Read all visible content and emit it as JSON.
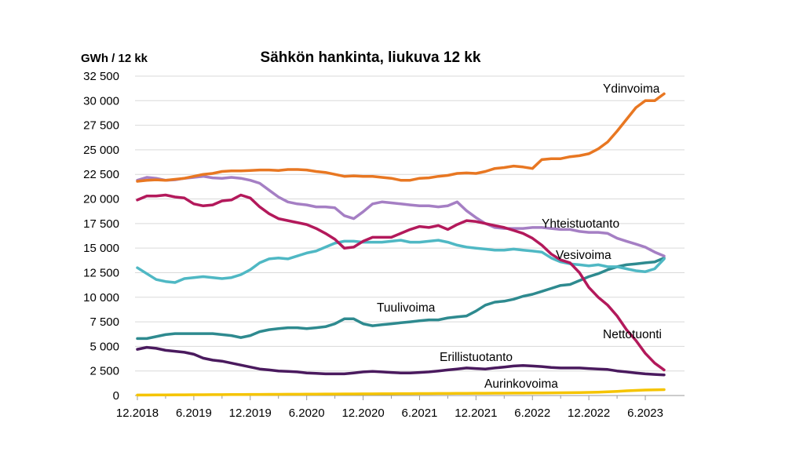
{
  "chart_data": {
    "type": "line",
    "title": "Sähkön hankinta, liukuva 12 kk",
    "ylabel": "GWh / 12 kk",
    "xlabel": "",
    "ylim": [
      0,
      32500
    ],
    "yticks": [
      0,
      2500,
      5000,
      7500,
      10000,
      12500,
      15000,
      17500,
      20000,
      22500,
      25000,
      27500,
      30000,
      32500
    ],
    "ytick_labels": [
      "0",
      "2 500",
      "5 000",
      "7 500",
      "10 000",
      "12 500",
      "15 000",
      "17 500",
      "20 000",
      "22 500",
      "25 000",
      "27 500",
      "30 000",
      "32 500"
    ],
    "xtick_labels": [
      "12.2018",
      "6.2019",
      "12.2019",
      "6.2020",
      "12.2020",
      "6.2021",
      "12.2021",
      "6.2022",
      "12.2022",
      "6.2023"
    ],
    "grid": true,
    "legend": "inline labels",
    "series": [
      {
        "name": "Ydinvoima",
        "color": "#e87722",
        "values": [
          21800,
          21900,
          21950,
          21900,
          22000,
          22100,
          22300,
          22500,
          22600,
          22800,
          22850,
          22850,
          22900,
          22950,
          22950,
          22900,
          23000,
          23000,
          22950,
          22800,
          22700,
          22500,
          22300,
          22350,
          22300,
          22300,
          22200,
          22100,
          21900,
          21900,
          22100,
          22150,
          22300,
          22400,
          22600,
          22650,
          22600,
          22800,
          23100,
          23200,
          23350,
          23250,
          23100,
          24000,
          24100,
          24100,
          24300,
          24400,
          24600,
          25100,
          25800,
          26900,
          28100,
          29300,
          30000,
          30000,
          30700
        ]
      },
      {
        "name": "Yhteistuotanto",
        "color": "#a57fc4",
        "values": [
          21900,
          22200,
          22100,
          21900,
          21950,
          22100,
          22200,
          22300,
          22150,
          22100,
          22200,
          22100,
          21900,
          21600,
          20900,
          20200,
          19700,
          19500,
          19400,
          19200,
          19200,
          19100,
          18300,
          18000,
          18700,
          19500,
          19700,
          19600,
          19500,
          19400,
          19300,
          19300,
          19200,
          19300,
          19700,
          18800,
          18100,
          17500,
          17100,
          17000,
          17000,
          17000,
          17100,
          17100,
          17000,
          16900,
          16900,
          16700,
          16600,
          16600,
          16500,
          16000,
          15700,
          15400,
          15100,
          14600,
          14200
        ]
      },
      {
        "name": "Nettotuonti",
        "color": "#b3195b",
        "values": [
          19900,
          20300,
          20300,
          20400,
          20200,
          20100,
          19500,
          19300,
          19400,
          19800,
          19900,
          20400,
          20100,
          19200,
          18500,
          18000,
          17800,
          17600,
          17400,
          17000,
          16500,
          15900,
          15000,
          15100,
          15700,
          16100,
          16100,
          16100,
          16500,
          16900,
          17200,
          17100,
          17300,
          16900,
          17400,
          17800,
          17700,
          17500,
          17300,
          17100,
          16800,
          16500,
          16000,
          15300,
          14400,
          13800,
          13500,
          12500,
          11000,
          10000,
          9200,
          8100,
          6700,
          5600,
          4300,
          3300,
          2600
        ]
      },
      {
        "name": "Vesivoima",
        "color": "#4fb8c4",
        "values": [
          13000,
          12400,
          11800,
          11600,
          11500,
          11900,
          12000,
          12100,
          12000,
          11900,
          12000,
          12300,
          12800,
          13500,
          13900,
          14000,
          13900,
          14200,
          14500,
          14700,
          15100,
          15500,
          15700,
          15700,
          15600,
          15600,
          15600,
          15700,
          15800,
          15600,
          15600,
          15700,
          15800,
          15600,
          15300,
          15100,
          15000,
          14900,
          14800,
          14800,
          14900,
          14800,
          14700,
          14600,
          14000,
          13600,
          13400,
          13300,
          13200,
          13300,
          13100,
          13100,
          12900,
          12700,
          12600,
          12900,
          13900
        ]
      },
      {
        "name": "Tuulivoima",
        "color": "#2e8a8f",
        "values": [
          5800,
          5800,
          6000,
          6200,
          6300,
          6300,
          6300,
          6300,
          6300,
          6200,
          6100,
          5900,
          6100,
          6500,
          6700,
          6800,
          6900,
          6900,
          6800,
          6900,
          7000,
          7300,
          7800,
          7800,
          7300,
          7100,
          7200,
          7300,
          7400,
          7500,
          7600,
          7700,
          7700,
          7900,
          8000,
          8100,
          8600,
          9200,
          9500,
          9600,
          9800,
          10100,
          10300,
          10600,
          10900,
          11200,
          11300,
          11700,
          12100,
          12400,
          12800,
          13100,
          13300,
          13400,
          13500,
          13600,
          14000
        ]
      },
      {
        "name": "Erillistuotanto",
        "color": "#4a1a5e",
        "values": [
          4700,
          4900,
          4800,
          4600,
          4500,
          4400,
          4200,
          3800,
          3600,
          3500,
          3300,
          3100,
          2900,
          2700,
          2600,
          2500,
          2450,
          2400,
          2300,
          2250,
          2200,
          2200,
          2200,
          2300,
          2400,
          2450,
          2400,
          2350,
          2300,
          2300,
          2350,
          2400,
          2500,
          2600,
          2700,
          2800,
          2750,
          2700,
          2800,
          2900,
          3000,
          3050,
          3000,
          2950,
          2850,
          2800,
          2800,
          2800,
          2750,
          2700,
          2650,
          2500,
          2400,
          2300,
          2200,
          2150,
          2100
        ]
      },
      {
        "name": "Aurinkovoima",
        "color": "#f5c400",
        "values": [
          50,
          50,
          60,
          60,
          70,
          70,
          80,
          80,
          90,
          90,
          100,
          100,
          110,
          110,
          120,
          120,
          130,
          130,
          140,
          140,
          150,
          150,
          160,
          160,
          170,
          170,
          180,
          180,
          190,
          190,
          200,
          200,
          210,
          210,
          220,
          220,
          230,
          230,
          240,
          240,
          250,
          250,
          260,
          260,
          270,
          280,
          290,
          300,
          320,
          340,
          380,
          420,
          480,
          520,
          560,
          580,
          600
        ]
      }
    ]
  }
}
